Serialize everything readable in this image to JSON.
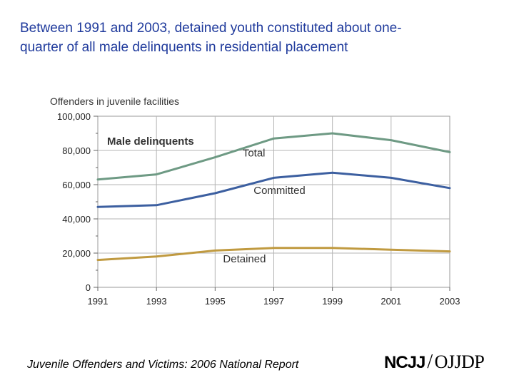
{
  "slide": {
    "title_line1": "Between 1991 and 2003, detained youth constituted about one-",
    "title_line2": "quarter of all male delinquents in residential placement",
    "footer": "Juvenile Offenders and Victims: 2006 National Report",
    "logo_left": "NCJJ",
    "logo_right": "OJJDP"
  },
  "chart_data": {
    "type": "line",
    "ylabel": "Offenders in juvenile facilities",
    "panel_label": "Male delinquents",
    "x": [
      1991,
      1993,
      1995,
      1997,
      1999,
      2001,
      2003
    ],
    "x_tick_labels": [
      "1991",
      "1993",
      "1995",
      "1997",
      "1999",
      "2001",
      "2003"
    ],
    "ylim": [
      0,
      100000
    ],
    "y_ticks": [
      0,
      20000,
      40000,
      60000,
      80000,
      100000
    ],
    "y_tick_labels": [
      "0",
      "20,000",
      "40,000",
      "60,000",
      "80,000",
      "100,000"
    ],
    "grid": true,
    "series": [
      {
        "name": "Total",
        "color": "#6e9a84",
        "values": [
          63000,
          66000,
          76000,
          87000,
          90000,
          86000,
          79000
        ]
      },
      {
        "name": "Committed",
        "color": "#3c5fa0",
        "values": [
          47000,
          48000,
          55000,
          64000,
          67000,
          64000,
          58000
        ]
      },
      {
        "name": "Detained",
        "color": "#c09a40",
        "values": [
          16000,
          18000,
          21500,
          23000,
          23000,
          22000,
          21000
        ]
      }
    ]
  }
}
